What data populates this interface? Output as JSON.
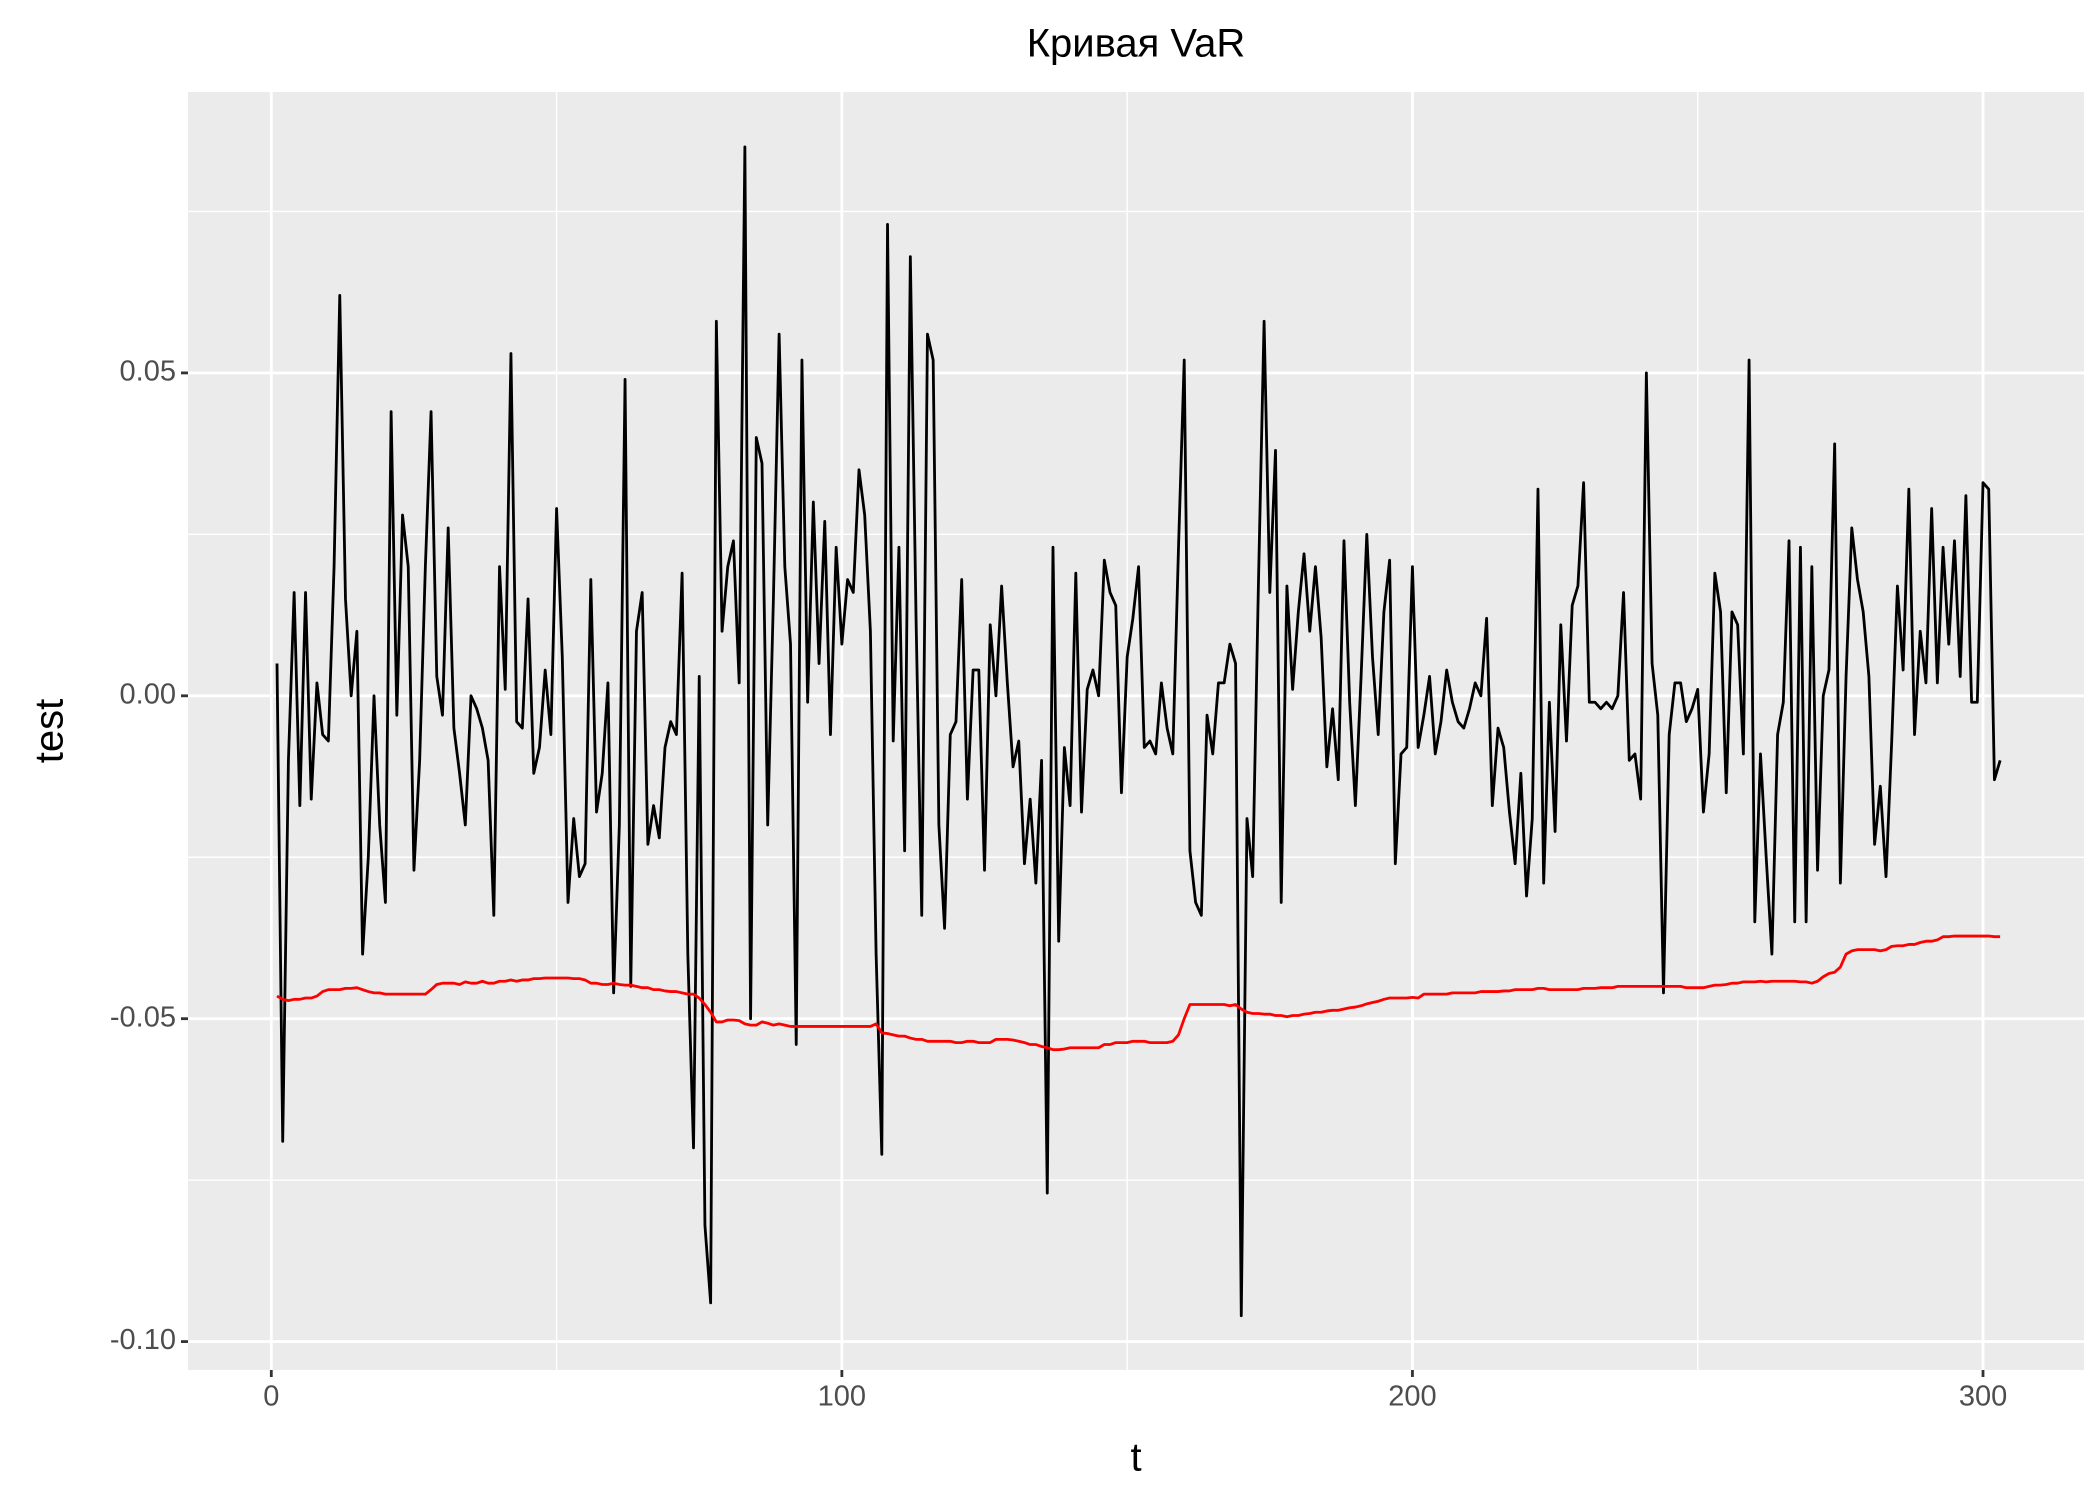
{
  "chart_data": {
    "type": "line",
    "title": "Кривая VaR",
    "xlabel": "t",
    "ylabel": "test",
    "x": [
      1,
      2,
      3,
      4,
      5,
      6,
      7,
      8,
      9,
      10,
      11,
      12,
      13,
      14,
      15,
      16,
      17,
      18,
      19,
      20,
      21,
      22,
      23,
      24,
      25,
      26,
      27,
      28,
      29,
      30,
      31,
      32,
      33,
      34,
      35,
      36,
      37,
      38,
      39,
      40,
      41,
      42,
      43,
      44,
      45,
      46,
      47,
      48,
      49,
      50,
      51,
      52,
      53,
      54,
      55,
      56,
      57,
      58,
      59,
      60,
      61,
      62,
      63,
      64,
      65,
      66,
      67,
      68,
      69,
      70,
      71,
      72,
      73,
      74,
      75,
      76,
      77,
      78,
      79,
      80,
      81,
      82,
      83,
      84,
      85,
      86,
      87,
      88,
      89,
      90,
      91,
      92,
      93,
      94,
      95,
      96,
      97,
      98,
      99,
      100,
      101,
      102,
      103,
      104,
      105,
      106,
      107,
      108,
      109,
      110,
      111,
      112,
      113,
      114,
      115,
      116,
      117,
      118,
      119,
      120,
      121,
      122,
      123,
      124,
      125,
      126,
      127,
      128,
      129,
      130,
      131,
      132,
      133,
      134,
      135,
      136,
      137,
      138,
      139,
      140,
      141,
      142,
      143,
      144,
      145,
      146,
      147,
      148,
      149,
      150,
      151,
      152,
      153,
      154,
      155,
      156,
      157,
      158,
      159,
      160,
      161,
      162,
      163,
      164,
      165,
      166,
      167,
      168,
      169,
      170,
      171,
      172,
      173,
      174,
      175,
      176,
      177,
      178,
      179,
      180,
      181,
      182,
      183,
      184,
      185,
      186,
      187,
      188,
      189,
      190,
      191,
      192,
      193,
      194,
      195,
      196,
      197,
      198,
      199,
      200,
      201,
      202,
      203,
      204,
      205,
      206,
      207,
      208,
      209,
      210,
      211,
      212,
      213,
      214,
      215,
      216,
      217,
      218,
      219,
      220,
      221,
      222,
      223,
      224,
      225,
      226,
      227,
      228,
      229,
      230,
      231,
      232,
      233,
      234,
      235,
      236,
      237,
      238,
      239,
      240,
      241,
      242,
      243,
      244,
      245,
      246,
      247,
      248,
      249,
      250,
      251,
      252,
      253,
      254,
      255,
      256,
      257,
      258,
      259,
      260,
      261,
      262,
      263,
      264,
      265,
      266,
      267,
      268,
      269,
      270,
      271,
      272,
      273,
      274,
      275,
      276,
      277,
      278,
      279,
      280,
      281,
      282,
      283,
      284,
      285,
      286,
      287,
      288,
      289,
      290,
      291,
      292,
      293,
      294,
      295,
      296,
      297,
      298,
      299,
      300,
      301,
      302,
      303
    ],
    "series": [
      {
        "color": "#000000",
        "values": [
          0.005,
          -0.069,
          -0.01,
          0.016,
          -0.017,
          0.016,
          -0.016,
          0.002,
          -0.006,
          -0.007,
          0.02,
          0.062,
          0.015,
          0.0,
          0.01,
          -0.04,
          -0.025,
          0.0,
          -0.02,
          -0.032,
          0.044,
          -0.003,
          0.028,
          0.02,
          -0.027,
          -0.01,
          0.02,
          0.044,
          0.003,
          -0.003,
          0.026,
          -0.005,
          -0.012,
          -0.02,
          0.0,
          -0.002,
          -0.005,
          -0.01,
          -0.034,
          0.02,
          0.001,
          0.053,
          -0.004,
          -0.005,
          0.015,
          -0.012,
          -0.008,
          0.004,
          -0.006,
          0.029,
          0.006,
          -0.032,
          -0.019,
          -0.028,
          -0.026,
          0.018,
          -0.018,
          -0.012,
          0.002,
          -0.046,
          -0.02,
          0.049,
          -0.045,
          0.01,
          0.016,
          -0.023,
          -0.017,
          -0.022,
          -0.008,
          -0.004,
          -0.006,
          0.019,
          -0.04,
          -0.07,
          0.003,
          -0.082,
          -0.094,
          0.058,
          0.01,
          0.02,
          0.024,
          0.002,
          0.085,
          -0.05,
          0.04,
          0.036,
          -0.02,
          0.015,
          0.056,
          0.02,
          0.008,
          -0.054,
          0.052,
          -0.001,
          0.03,
          0.005,
          0.027,
          -0.006,
          0.023,
          0.008,
          0.018,
          0.016,
          0.035,
          0.028,
          0.01,
          -0.04,
          -0.071,
          0.073,
          -0.007,
          0.023,
          -0.024,
          0.068,
          0.012,
          -0.034,
          0.056,
          0.052,
          -0.02,
          -0.036,
          -0.006,
          -0.004,
          0.018,
          -0.016,
          0.004,
          0.004,
          -0.027,
          0.011,
          0.0,
          0.017,
          0.002,
          -0.011,
          -0.007,
          -0.026,
          -0.016,
          -0.029,
          -0.01,
          -0.077,
          0.023,
          -0.038,
          -0.008,
          -0.017,
          0.019,
          -0.018,
          0.001,
          0.004,
          0.0,
          0.021,
          0.016,
          0.014,
          -0.015,
          0.006,
          0.012,
          0.02,
          -0.008,
          -0.007,
          -0.009,
          0.002,
          -0.005,
          -0.009,
          0.023,
          0.052,
          -0.024,
          -0.032,
          -0.034,
          -0.003,
          -0.009,
          0.002,
          0.002,
          0.008,
          0.005,
          -0.096,
          -0.019,
          -0.028,
          0.017,
          0.058,
          0.016,
          0.038,
          -0.032,
          0.017,
          0.001,
          0.013,
          0.022,
          0.01,
          0.02,
          0.009,
          -0.011,
          -0.002,
          -0.013,
          0.024,
          -0.001,
          -0.017,
          0.003,
          0.025,
          0.006,
          -0.006,
          0.013,
          0.021,
          -0.026,
          -0.009,
          -0.008,
          0.02,
          -0.008,
          -0.003,
          0.003,
          -0.009,
          -0.004,
          0.004,
          -0.001,
          -0.004,
          -0.005,
          -0.002,
          0.002,
          0.0,
          0.012,
          -0.017,
          -0.005,
          -0.008,
          -0.018,
          -0.026,
          -0.012,
          -0.031,
          -0.019,
          0.032,
          -0.029,
          -0.001,
          -0.021,
          0.011,
          -0.007,
          0.014,
          0.017,
          0.033,
          -0.001,
          -0.001,
          -0.002,
          -0.001,
          -0.002,
          0.0,
          0.016,
          -0.01,
          -0.009,
          -0.016,
          0.05,
          0.005,
          -0.003,
          -0.046,
          -0.006,
          0.002,
          0.002,
          -0.004,
          -0.002,
          0.001,
          -0.018,
          -0.009,
          0.019,
          0.013,
          -0.015,
          0.013,
          0.011,
          -0.009,
          0.052,
          -0.035,
          -0.009,
          -0.025,
          -0.04,
          -0.006,
          -0.001,
          0.024,
          -0.035,
          0.023,
          -0.035,
          0.02,
          -0.027,
          0.0,
          0.004,
          0.039,
          -0.029,
          0.003,
          0.026,
          0.018,
          0.013,
          0.003,
          -0.023,
          -0.014,
          -0.028,
          -0.007,
          0.017,
          0.004,
          0.032,
          -0.006,
          0.01,
          0.002,
          0.029,
          0.002,
          0.023,
          0.008,
          0.024,
          0.003,
          0.031,
          -0.001,
          -0.001,
          0.033,
          0.032,
          -0.013,
          -0.01
        ]
      },
      {
        "color": "#FF0000",
        "values": [
          -0.0465,
          -0.047,
          -0.0472,
          -0.047,
          -0.047,
          -0.0468,
          -0.0468,
          -0.0465,
          -0.0458,
          -0.0455,
          -0.0455,
          -0.0455,
          -0.0453,
          -0.0453,
          -0.0452,
          -0.0455,
          -0.0458,
          -0.046,
          -0.046,
          -0.0462,
          -0.0462,
          -0.0462,
          -0.0462,
          -0.0462,
          -0.0462,
          -0.0462,
          -0.0462,
          -0.0455,
          -0.0447,
          -0.0445,
          -0.0445,
          -0.0445,
          -0.0447,
          -0.0443,
          -0.0445,
          -0.0445,
          -0.0442,
          -0.0445,
          -0.0445,
          -0.0442,
          -0.0442,
          -0.044,
          -0.0442,
          -0.044,
          -0.044,
          -0.0438,
          -0.0438,
          -0.0437,
          -0.0437,
          -0.0437,
          -0.0437,
          -0.0437,
          -0.0438,
          -0.0438,
          -0.044,
          -0.0445,
          -0.0445,
          -0.0447,
          -0.0447,
          -0.0445,
          -0.0447,
          -0.0448,
          -0.0448,
          -0.045,
          -0.0452,
          -0.0452,
          -0.0455,
          -0.0455,
          -0.0457,
          -0.0458,
          -0.0458,
          -0.046,
          -0.0462,
          -0.0462,
          -0.0468,
          -0.0478,
          -0.049,
          -0.0505,
          -0.0505,
          -0.0502,
          -0.0502,
          -0.0503,
          -0.0508,
          -0.051,
          -0.051,
          -0.0505,
          -0.0507,
          -0.051,
          -0.0508,
          -0.051,
          -0.0512,
          -0.0512,
          -0.0512,
          -0.0512,
          -0.0512,
          -0.0512,
          -0.0512,
          -0.0512,
          -0.0512,
          -0.0512,
          -0.0512,
          -0.0512,
          -0.0512,
          -0.0512,
          -0.0512,
          -0.0508,
          -0.0522,
          -0.0523,
          -0.0525,
          -0.0527,
          -0.0527,
          -0.053,
          -0.0532,
          -0.0532,
          -0.0535,
          -0.0535,
          -0.0535,
          -0.0535,
          -0.0535,
          -0.0537,
          -0.0537,
          -0.0535,
          -0.0535,
          -0.0537,
          -0.0537,
          -0.0537,
          -0.0532,
          -0.0532,
          -0.0532,
          -0.0533,
          -0.0535,
          -0.0537,
          -0.054,
          -0.054,
          -0.0543,
          -0.0545,
          -0.0548,
          -0.0548,
          -0.0547,
          -0.0545,
          -0.0545,
          -0.0545,
          -0.0545,
          -0.0545,
          -0.0545,
          -0.054,
          -0.054,
          -0.0537,
          -0.0537,
          -0.0537,
          -0.0535,
          -0.0535,
          -0.0535,
          -0.0537,
          -0.0537,
          -0.0537,
          -0.0537,
          -0.0535,
          -0.0525,
          -0.05,
          -0.0478,
          -0.0478,
          -0.0478,
          -0.0478,
          -0.0478,
          -0.0478,
          -0.0478,
          -0.048,
          -0.0478,
          -0.0485,
          -0.049,
          -0.0492,
          -0.0492,
          -0.0493,
          -0.0493,
          -0.0495,
          -0.0495,
          -0.0497,
          -0.0495,
          -0.0495,
          -0.0493,
          -0.0492,
          -0.049,
          -0.049,
          -0.0488,
          -0.0487,
          -0.0487,
          -0.0485,
          -0.0483,
          -0.0482,
          -0.048,
          -0.0477,
          -0.0475,
          -0.0473,
          -0.047,
          -0.0468,
          -0.0468,
          -0.0468,
          -0.0468,
          -0.0467,
          -0.0468,
          -0.0462,
          -0.0462,
          -0.0462,
          -0.0462,
          -0.0462,
          -0.046,
          -0.046,
          -0.046,
          -0.046,
          -0.046,
          -0.0458,
          -0.0458,
          -0.0458,
          -0.0458,
          -0.0457,
          -0.0457,
          -0.0455,
          -0.0455,
          -0.0455,
          -0.0455,
          -0.0453,
          -0.0453,
          -0.0455,
          -0.0455,
          -0.0455,
          -0.0455,
          -0.0455,
          -0.0455,
          -0.0453,
          -0.0453,
          -0.0453,
          -0.0452,
          -0.0452,
          -0.0452,
          -0.045,
          -0.045,
          -0.045,
          -0.045,
          -0.045,
          -0.045,
          -0.045,
          -0.045,
          -0.045,
          -0.045,
          -0.045,
          -0.045,
          -0.0452,
          -0.0452,
          -0.0452,
          -0.0452,
          -0.045,
          -0.0448,
          -0.0448,
          -0.0447,
          -0.0445,
          -0.0445,
          -0.0443,
          -0.0443,
          -0.0443,
          -0.0442,
          -0.0443,
          -0.0442,
          -0.0442,
          -0.0442,
          -0.0442,
          -0.0442,
          -0.0443,
          -0.0443,
          -0.0445,
          -0.0442,
          -0.0435,
          -0.043,
          -0.0428,
          -0.042,
          -0.04,
          -0.0395,
          -0.0393,
          -0.0393,
          -0.0393,
          -0.0393,
          -0.0395,
          -0.0393,
          -0.0388,
          -0.0387,
          -0.0387,
          -0.0385,
          -0.0385,
          -0.0382,
          -0.038,
          -0.038,
          -0.0378,
          -0.0373,
          -0.0373,
          -0.0372,
          -0.0372,
          -0.0372,
          -0.0372,
          -0.0372,
          -0.0372,
          -0.0372,
          -0.0373,
          -0.0373
        ]
      }
    ],
    "xlim": [
      -14.6,
      317.7
    ],
    "ylim": [
      -0.1044,
      0.0935
    ],
    "xticks": [
      0,
      100,
      200,
      300
    ],
    "yticks": [
      {
        "value": -0.1,
        "label": "-0.10"
      },
      -0.05,
      {
        "value": 0,
        "label": "0.00"
      },
      0.05
    ],
    "xminor": [
      50,
      150,
      250
    ],
    "yminor": [
      -0.075,
      -0.025,
      0.025,
      0.075
    ],
    "grid": true,
    "panel_color": "#EBEBEB"
  }
}
